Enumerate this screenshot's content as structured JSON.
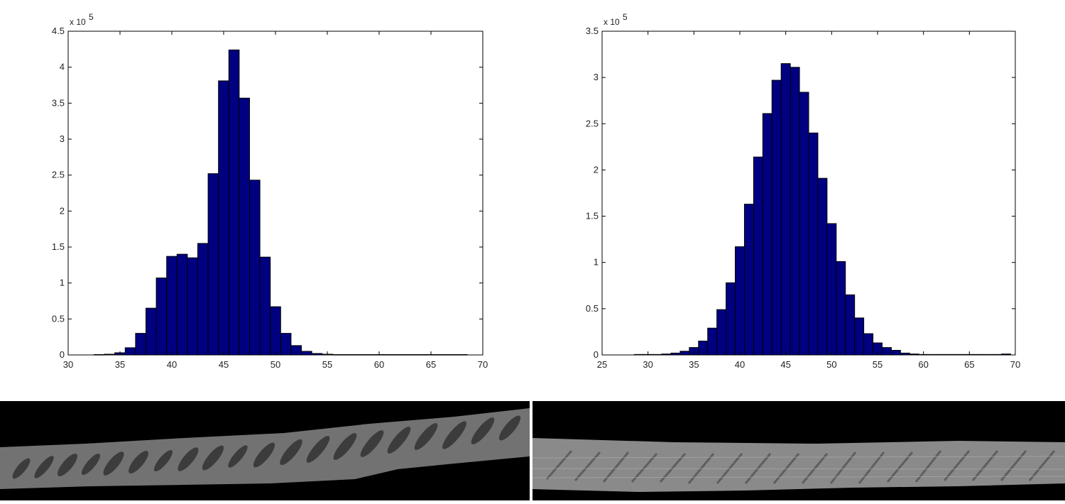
{
  "colors": {
    "bar_fill": "#000080",
    "bar_edge": "#000000",
    "axis": "#000000",
    "background": "#ffffff",
    "strip_background": "#000000",
    "strip_tissue": "#6e6e6e",
    "strip_cells": "#3a3a3a"
  },
  "images": [
    {
      "name": "left-strip-image",
      "content": "grayscale microscopy strip with dark elongated cells"
    },
    {
      "name": "right-strip-image",
      "content": "grayscale textured microscopy strip"
    }
  ],
  "chart_data": [
    {
      "type": "bar",
      "title": "",
      "xlabel": "",
      "ylabel": "",
      "exponent_label": "x 10",
      "exponent_power": "5",
      "xlim": [
        30,
        70
      ],
      "ylim": [
        0,
        4.5
      ],
      "x_ticks": [
        30,
        35,
        40,
        45,
        50,
        55,
        60,
        65,
        70
      ],
      "y_ticks": [
        0,
        0.5,
        1,
        1.5,
        2,
        2.5,
        3,
        3.5,
        4,
        4.5
      ],
      "bin_width": 1,
      "x": [
        33,
        34,
        35,
        36,
        37,
        38,
        39,
        40,
        41,
        42,
        43,
        44,
        45,
        46,
        47,
        48,
        49,
        50,
        51,
        52,
        53,
        54,
        55,
        56,
        57,
        58,
        59,
        60,
        61,
        62,
        63,
        64,
        65,
        66,
        67,
        68
      ],
      "values": [
        0.005,
        0.01,
        0.03,
        0.1,
        0.3,
        0.65,
        1.07,
        1.37,
        1.4,
        1.35,
        1.55,
        2.52,
        3.81,
        4.24,
        3.57,
        2.43,
        1.36,
        0.67,
        0.3,
        0.13,
        0.05,
        0.02,
        0.01,
        0.005,
        0.005,
        0.005,
        0.005,
        0.005,
        0.005,
        0.005,
        0.005,
        0.005,
        0.005,
        0.005,
        0.005,
        0.005
      ]
    },
    {
      "type": "bar",
      "title": "",
      "xlabel": "",
      "ylabel": "",
      "exponent_label": "x 10",
      "exponent_power": "5",
      "xlim": [
        25,
        70
      ],
      "ylim": [
        0,
        3.5
      ],
      "x_ticks": [
        25,
        30,
        35,
        40,
        45,
        50,
        55,
        60,
        65,
        70
      ],
      "y_ticks": [
        0,
        0.5,
        1,
        1.5,
        2,
        2.5,
        3,
        3.5
      ],
      "bin_width": 1,
      "x": [
        29,
        30,
        31,
        32,
        33,
        34,
        35,
        36,
        37,
        38,
        39,
        40,
        41,
        42,
        43,
        44,
        45,
        46,
        47,
        48,
        49,
        50,
        51,
        52,
        53,
        54,
        55,
        56,
        57,
        58,
        59,
        60,
        61,
        62,
        63,
        64,
        65,
        66,
        67,
        68,
        69
      ],
      "values": [
        0.005,
        0.005,
        0.005,
        0.01,
        0.02,
        0.04,
        0.08,
        0.15,
        0.29,
        0.49,
        0.78,
        1.17,
        1.63,
        2.14,
        2.61,
        2.97,
        3.15,
        3.11,
        2.84,
        2.4,
        1.91,
        1.42,
        1.01,
        0.65,
        0.4,
        0.23,
        0.13,
        0.08,
        0.05,
        0.02,
        0.01,
        0.005,
        0.005,
        0.005,
        0.005,
        0.005,
        0.005,
        0.005,
        0.005,
        0.005,
        0.01
      ]
    }
  ]
}
